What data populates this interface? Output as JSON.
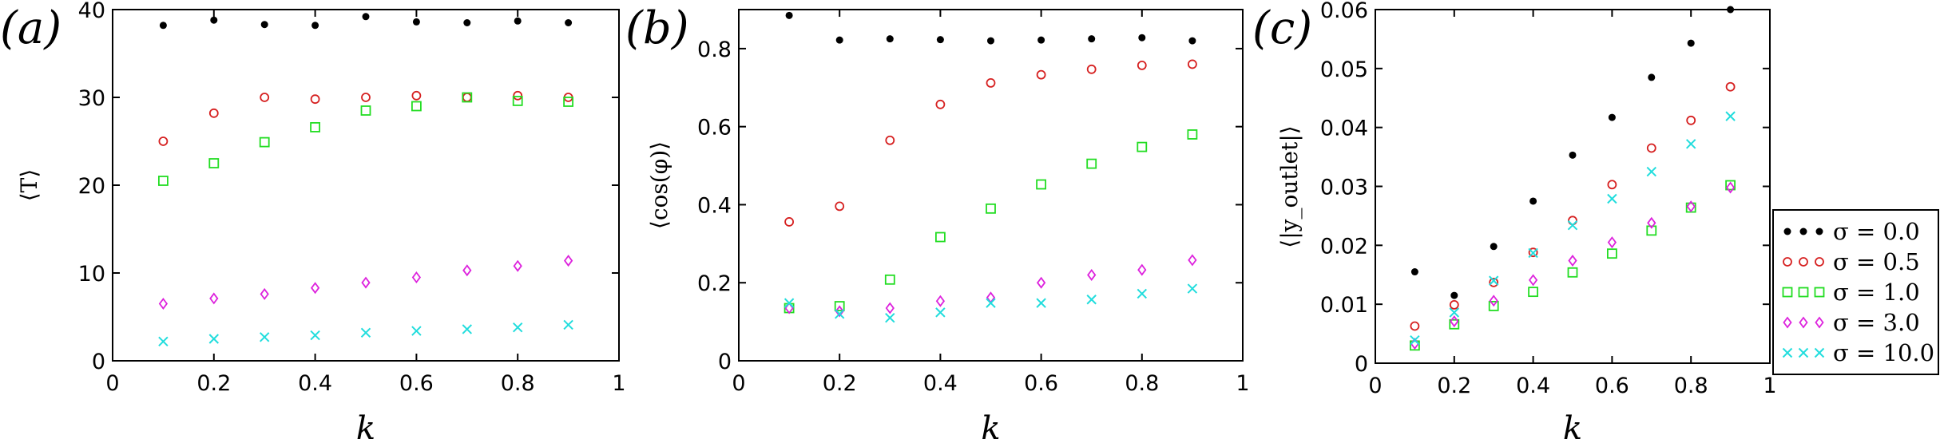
{
  "chart_data": [
    {
      "type": "scatter",
      "panel_tag": "(a)",
      "xlabel": "k",
      "ylabel": "⟨T⟩",
      "xlim": [
        0,
        1
      ],
      "ylim": [
        0,
        40
      ],
      "xticks": [
        0,
        0.2,
        0.4,
        0.6,
        0.8,
        1
      ],
      "xtick_labels": [
        "0",
        "0.2",
        "0.4",
        "0.6",
        "0.8",
        "1"
      ],
      "yticks": [
        0,
        10,
        20,
        30,
        40
      ],
      "ytick_labels": [
        "0",
        "10",
        "20",
        "30",
        "40"
      ],
      "x": [
        0.1,
        0.2,
        0.3,
        0.4,
        0.5,
        0.6,
        0.7,
        0.8,
        0.9
      ],
      "series": [
        {
          "name": "σ = 0.0",
          "values": [
            38.2,
            38.8,
            38.3,
            38.2,
            39.2,
            38.6,
            38.5,
            38.7,
            38.5
          ]
        },
        {
          "name": "σ = 0.5",
          "values": [
            25.0,
            28.2,
            30.0,
            29.8,
            30.0,
            30.2,
            30.0,
            30.2,
            30.0
          ]
        },
        {
          "name": "σ = 1.0",
          "values": [
            20.5,
            22.5,
            24.9,
            26.6,
            28.5,
            29.0,
            30.0,
            29.6,
            29.5
          ]
        },
        {
          "name": "σ = 3.0",
          "values": [
            6.5,
            7.1,
            7.6,
            8.3,
            8.9,
            9.5,
            10.3,
            10.8,
            11.4
          ]
        },
        {
          "name": "σ = 10.0",
          "values": [
            2.2,
            2.5,
            2.7,
            2.9,
            3.2,
            3.4,
            3.6,
            3.8,
            4.1
          ]
        }
      ]
    },
    {
      "type": "scatter",
      "panel_tag": "(b)",
      "xlabel": "k",
      "ylabel": "⟨cos(φ)⟩",
      "xlim": [
        0,
        1
      ],
      "ylim": [
        0,
        0.9
      ],
      "xticks": [
        0,
        0.2,
        0.4,
        0.6,
        0.8,
        1
      ],
      "xtick_labels": [
        "0",
        "0.2",
        "0.4",
        "0.6",
        "0.8",
        "1"
      ],
      "yticks": [
        0,
        0.2,
        0.4,
        0.6,
        0.8
      ],
      "ytick_labels": [
        "0",
        "0.2",
        "0.4",
        "0.6",
        "0.8"
      ],
      "x": [
        0.1,
        0.2,
        0.3,
        0.4,
        0.5,
        0.6,
        0.7,
        0.8,
        0.9
      ],
      "series": [
        {
          "name": "σ = 0.0",
          "values": [
            0.885,
            0.822,
            0.825,
            0.823,
            0.82,
            0.822,
            0.825,
            0.828,
            0.82
          ]
        },
        {
          "name": "σ = 0.5",
          "values": [
            0.356,
            0.396,
            0.565,
            0.657,
            0.712,
            0.733,
            0.747,
            0.757,
            0.76
          ]
        },
        {
          "name": "σ = 1.0",
          "values": [
            0.135,
            0.14,
            0.208,
            0.317,
            0.39,
            0.452,
            0.505,
            0.548,
            0.58
          ]
        },
        {
          "name": "σ = 3.0",
          "values": [
            0.135,
            0.127,
            0.135,
            0.153,
            0.162,
            0.2,
            0.22,
            0.233,
            0.258
          ]
        },
        {
          "name": "σ = 10.0",
          "values": [
            0.148,
            0.12,
            0.11,
            0.124,
            0.148,
            0.148,
            0.157,
            0.172,
            0.185
          ]
        }
      ]
    },
    {
      "type": "scatter",
      "panel_tag": "(c)",
      "xlabel": "k",
      "ylabel": "⟨|y_outlet|⟩",
      "xlim": [
        0,
        1
      ],
      "ylim": [
        0,
        0.06
      ],
      "xticks": [
        0,
        0.2,
        0.4,
        0.6,
        0.8,
        1
      ],
      "xtick_labels": [
        "0",
        "0.2",
        "0.4",
        "0.6",
        "0.8",
        "1"
      ],
      "yticks": [
        0,
        0.01,
        0.02,
        0.03,
        0.04,
        0.05,
        0.06
      ],
      "ytick_labels": [
        "0",
        "0.01",
        "0.02",
        "0.03",
        "0.04",
        "0.05",
        "0.06"
      ],
      "x": [
        0.1,
        0.2,
        0.3,
        0.4,
        0.5,
        0.6,
        0.7,
        0.8,
        0.9
      ],
      "series": [
        {
          "name": "σ = 0.0",
          "values": [
            0.0155,
            0.0115,
            0.0198,
            0.0275,
            0.0353,
            0.0417,
            0.0485,
            0.0543,
            0.06
          ]
        },
        {
          "name": "σ = 0.5",
          "values": [
            0.0063,
            0.0099,
            0.0137,
            0.0188,
            0.0242,
            0.0303,
            0.0365,
            0.0412,
            0.0469
          ]
        },
        {
          "name": "σ = 1.0",
          "values": [
            0.003,
            0.0066,
            0.0097,
            0.0121,
            0.0154,
            0.0186,
            0.0225,
            0.0264,
            0.0302
          ]
        },
        {
          "name": "σ = 3.0",
          "values": [
            0.0033,
            0.0071,
            0.0106,
            0.0141,
            0.0174,
            0.0205,
            0.0238,
            0.0266,
            0.0298
          ]
        },
        {
          "name": "σ = 10.0",
          "values": [
            0.0039,
            0.0086,
            0.014,
            0.0187,
            0.0234,
            0.0279,
            0.0325,
            0.0372,
            0.0419
          ]
        }
      ]
    }
  ],
  "legend": {
    "placement": "right of panel (c)",
    "entries": [
      {
        "label": "σ = 0.0",
        "marker": "dot",
        "color": "#000000"
      },
      {
        "label": "σ = 0.5",
        "marker": "circle",
        "color": "#d62020"
      },
      {
        "label": "σ = 1.0",
        "marker": "square",
        "color": "#22dd22"
      },
      {
        "label": "σ = 3.0",
        "marker": "diamond",
        "color": "#dd22dd"
      },
      {
        "label": "σ = 10.0",
        "marker": "cross",
        "color": "#22dddd"
      }
    ]
  }
}
